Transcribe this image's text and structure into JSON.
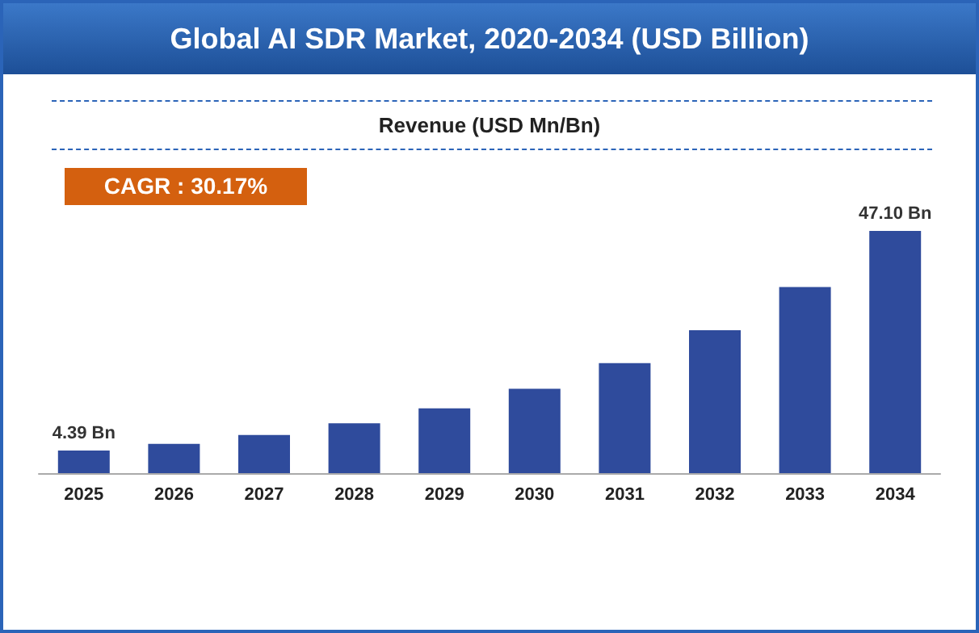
{
  "chart_data": {
    "type": "bar",
    "title": "Global AI SDR Market, 2020-2034 (USD Billion)",
    "subtitle": "Revenue (USD Mn/Bn)",
    "annotations": [
      "CAGR : 30.17%"
    ],
    "categories": [
      "2025",
      "2026",
      "2027",
      "2028",
      "2029",
      "2030",
      "2031",
      "2032",
      "2033",
      "2034"
    ],
    "values": [
      4.39,
      5.7,
      7.4,
      9.7,
      12.6,
      16.4,
      21.4,
      27.8,
      36.2,
      47.1
    ],
    "value_labels": [
      "4.39 Bn",
      null,
      null,
      null,
      null,
      null,
      null,
      null,
      null,
      "47.10 Bn"
    ],
    "color": "#2f4b9c"
  }
}
